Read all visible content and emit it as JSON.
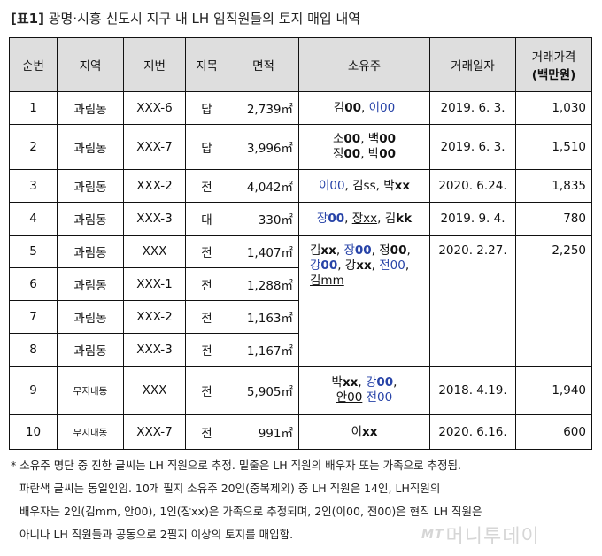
{
  "title": {
    "prefix": "[표1]",
    "text": " 광명·시흥 신도시 지구 내 LH 임직원들의 토지 매입 내역"
  },
  "headers": [
    "순번",
    "지역",
    "지번",
    "지목",
    "면적",
    "소유주",
    "거래일자",
    "거래가격",
    "(백만원)"
  ],
  "rows": [
    {
      "no": "1",
      "region": "과림동",
      "lot": "XXX-6",
      "type": "답",
      "area": "2,739㎡",
      "date": "2019. 6. 3.",
      "price": "1,030"
    },
    {
      "no": "2",
      "region": "과림동",
      "lot": "XXX-7",
      "type": "답",
      "area": "3,996㎡",
      "date": "2019. 6. 3.",
      "price": "1,510"
    },
    {
      "no": "3",
      "region": "과림동",
      "lot": "XXX-2",
      "type": "전",
      "area": "4,042㎡",
      "date": "2020. 6.24.",
      "price": "1,835"
    },
    {
      "no": "4",
      "region": "과림동",
      "lot": "XXX-3",
      "type": "대",
      "area": "330㎡",
      "date": "2019. 9. 4.",
      "price": "780"
    },
    {
      "no": "5",
      "region": "과림동",
      "lot": "XXX",
      "type": "전",
      "area": "1,407㎡",
      "date": "2020. 2.27.",
      "price": "2,250"
    },
    {
      "no": "6",
      "region": "과림동",
      "lot": "XXX-1",
      "type": "전",
      "area": "1,288㎡"
    },
    {
      "no": "7",
      "region": "과림동",
      "lot": "XXX-2",
      "type": "전",
      "area": "1,163㎡"
    },
    {
      "no": "8",
      "region": "과림동",
      "lot": "XXX-3",
      "type": "전",
      "area": "1,167㎡"
    },
    {
      "no": "9",
      "region": "무지내동",
      "lot": "XXX",
      "type": "전",
      "area": "5,905㎡",
      "date": "2018. 4.19.",
      "price": "1,940"
    },
    {
      "no": "10",
      "region": "무지내동",
      "lot": "XXX-7",
      "type": "전",
      "area": "991㎡",
      "date": "2020. 6.16.",
      "price": "600"
    }
  ],
  "owners": {
    "r1": {
      "a": "김",
      "b": "00",
      "c": ", ",
      "d": "이00"
    },
    "r2": {
      "a": "소",
      "b": "00",
      "c": ", 백",
      "d": "00",
      "e": "정",
      "f": "00",
      "g": ", 박",
      "h": "00"
    },
    "r3": {
      "a": "이00",
      "b": ", 김ss, 박",
      "c": "xx"
    },
    "r4": {
      "a": "장",
      "b": "00",
      "c": ", ",
      "d": "장xx",
      "e": ", 김",
      "f": "kk"
    },
    "r5": {
      "a": "김",
      "b": "xx",
      "c": ", ",
      "d": "장",
      "e": "00",
      "f": ", 정",
      "g": "00",
      "h": ",",
      "i": "강",
      "j": "00",
      "k": ", 강",
      "l": "xx",
      "m": ", ",
      "n": "전00",
      "o": ",",
      "p": "김mm"
    },
    "r9": {
      "a": "박",
      "b": "xx",
      "c": ", ",
      "d": "강",
      "e": "00",
      "f": ",",
      "g": "안00",
      "h": " ",
      "i": "전00"
    },
    "r10": {
      "a": "이",
      "b": "xx"
    }
  },
  "notes": [
    "* 소유주 명단 중 진한 글씨는 LH 직원으로 추정. 밑줄은 LH 직원의 배우자 또는 가족으로 추정됨.",
    "파란색 글씨는 동일인임. 10개 필지 소유주 20인(중복제외) 중 LH 직원은 14인, LH직원의",
    "배우자는 2인(김mm, 안00), 1인(장xx)은 가족으로 추정되며, 2인(이00, 전00)은 현직 LH 직원은",
    "아니나 LH 직원들과 공동으로 2필지 이상의 토지를 매입함."
  ],
  "watermark": {
    "mt": "MT",
    "text": "머니투데이"
  }
}
